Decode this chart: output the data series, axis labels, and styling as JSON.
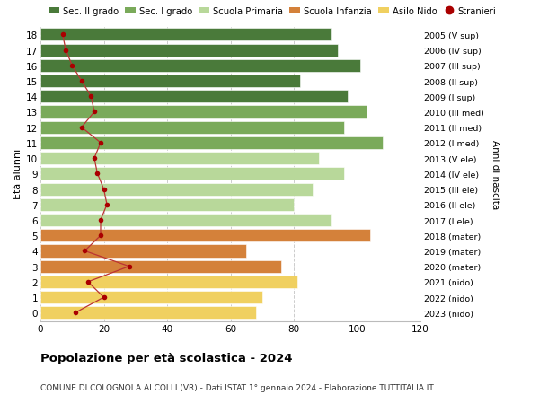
{
  "ages": [
    18,
    17,
    16,
    15,
    14,
    13,
    12,
    11,
    10,
    9,
    8,
    7,
    6,
    5,
    4,
    3,
    2,
    1,
    0
  ],
  "bar_values": [
    92,
    94,
    101,
    82,
    97,
    103,
    96,
    108,
    88,
    96,
    86,
    80,
    92,
    104,
    65,
    76,
    81,
    70,
    68
  ],
  "stranieri": [
    7,
    8,
    10,
    13,
    16,
    17,
    13,
    19,
    17,
    18,
    20,
    21,
    19,
    19,
    14,
    28,
    15,
    20,
    11
  ],
  "right_labels": [
    "2005 (V sup)",
    "2006 (IV sup)",
    "2007 (III sup)",
    "2008 (II sup)",
    "2009 (I sup)",
    "2010 (III med)",
    "2011 (II med)",
    "2012 (I med)",
    "2013 (V ele)",
    "2014 (IV ele)",
    "2015 (III ele)",
    "2016 (II ele)",
    "2017 (I ele)",
    "2018 (mater)",
    "2019 (mater)",
    "2020 (mater)",
    "2021 (nido)",
    "2022 (nido)",
    "2023 (nido)"
  ],
  "bar_colors": [
    "#4a7a3a",
    "#4a7a3a",
    "#4a7a3a",
    "#4a7a3a",
    "#4a7a3a",
    "#7aaa5a",
    "#7aaa5a",
    "#7aaa5a",
    "#b8d89a",
    "#b8d89a",
    "#b8d89a",
    "#b8d89a",
    "#b8d89a",
    "#d4813a",
    "#d4813a",
    "#d4813a",
    "#f0d060",
    "#f0d060",
    "#f0d060"
  ],
  "stranieri_color": "#aa0000",
  "stranieri_line_color": "#bb3333",
  "legend_labels": [
    "Sec. II grado",
    "Sec. I grado",
    "Scuola Primaria",
    "Scuola Infanzia",
    "Asilo Nido",
    "Stranieri"
  ],
  "legend_colors": [
    "#4a7a3a",
    "#7aaa5a",
    "#b8d89a",
    "#d4813a",
    "#f0d060",
    "#aa0000"
  ],
  "ylabel": "Età alunni",
  "right_ylabel": "Anni di nascita",
  "title": "Popolazione per età scolastica - 2024",
  "subtitle": "COMUNE DI COLOGNOLA AI COLLI (VR) - Dati ISTAT 1° gennaio 2024 - Elaborazione TUTTITALIA.IT",
  "xlim": [
    0,
    120
  ],
  "background_color": "#ffffff",
  "grid_color": "#cccccc"
}
